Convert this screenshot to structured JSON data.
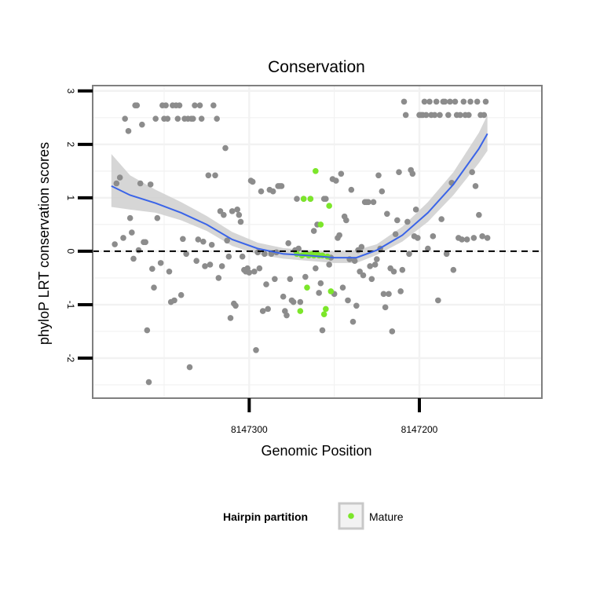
{
  "chart_data": {
    "type": "scatter",
    "title": "Conservation",
    "xlabel": "Genomic Position",
    "ylabel": "phyloP LRT conservation scores",
    "x_reversed": true,
    "xlim": [
      8147392,
      8147128
    ],
    "ylim": [
      -2.75,
      3.1
    ],
    "x_ticks": [
      8147300,
      8147200
    ],
    "y_ticks": [
      -2,
      -1,
      0,
      1,
      2,
      3
    ],
    "grid": true,
    "reference_line": {
      "y": 0,
      "style": "dashed",
      "color": "#000000"
    },
    "legend": {
      "title": "Hairpin partition",
      "placement": "bottom",
      "entries": [
        "Mature"
      ]
    },
    "colors": {
      "other": "#8c8c8c",
      "mature": "#7ce62a",
      "smooth": "#3a64e8",
      "band": "#cfcfcf",
      "panel_border": "#7f7f7f",
      "grid": "#f2f2f2"
    },
    "series": [
      {
        "name": "",
        "color": "#8c8c8c",
        "points": [
          [
            8147379,
            0.13
          ],
          [
            8147378,
            1.27
          ],
          [
            8147376,
            1.38
          ],
          [
            8147374,
            0.25
          ],
          [
            8147373,
            2.48
          ],
          [
            8147371,
            2.25
          ],
          [
            8147370,
            0.62
          ],
          [
            8147369,
            0.35
          ],
          [
            8147368,
            -0.14
          ],
          [
            8147367,
            2.73
          ],
          [
            8147366,
            2.73
          ],
          [
            8147365,
            0.02
          ],
          [
            8147364,
            1.27
          ],
          [
            8147363,
            2.37
          ],
          [
            8147362,
            0.17
          ],
          [
            8147361,
            0.17
          ],
          [
            8147360,
            -1.48
          ],
          [
            8147359,
            -2.45
          ],
          [
            8147358,
            1.25
          ],
          [
            8147357,
            -0.33
          ],
          [
            8147356,
            -0.68
          ],
          [
            8147355,
            2.48
          ],
          [
            8147354,
            0.62
          ],
          [
            8147352,
            -0.22
          ],
          [
            8147351,
            2.73
          ],
          [
            8147350,
            2.48
          ],
          [
            8147349,
            2.73
          ],
          [
            8147348,
            2.48
          ],
          [
            8147347,
            -0.38
          ],
          [
            8147346,
            -0.95
          ],
          [
            8147345,
            2.73
          ],
          [
            8147344,
            -0.92
          ],
          [
            8147343,
            2.73
          ],
          [
            8147342,
            2.48
          ],
          [
            8147341,
            2.73
          ],
          [
            8147340,
            -0.82
          ],
          [
            8147339,
            0.23
          ],
          [
            8147338,
            2.48
          ],
          [
            8147337,
            -0.05
          ],
          [
            8147336,
            2.48
          ],
          [
            8147335,
            -2.17
          ],
          [
            8147334,
            2.48
          ],
          [
            8147333,
            2.48
          ],
          [
            8147332,
            2.73
          ],
          [
            8147331,
            -0.18
          ],
          [
            8147330,
            0.22
          ],
          [
            8147329,
            2.73
          ],
          [
            8147328,
            2.48
          ],
          [
            8147327,
            0.18
          ],
          [
            8147326,
            -0.28
          ],
          [
            8147324,
            1.42
          ],
          [
            8147323,
            -0.25
          ],
          [
            8147322,
            0.12
          ],
          [
            8147321,
            2.73
          ],
          [
            8147320,
            1.42
          ],
          [
            8147319,
            2.48
          ],
          [
            8147318,
            -0.5
          ],
          [
            8147317,
            0.75
          ],
          [
            8147316,
            -0.28
          ],
          [
            8147315,
            0.68
          ],
          [
            8147314,
            1.93
          ],
          [
            8147313,
            0.2
          ],
          [
            8147312,
            -0.1
          ],
          [
            8147311,
            -1.25
          ],
          [
            8147310,
            0.75
          ],
          [
            8147309,
            -0.98
          ],
          [
            8147308,
            -1.02
          ],
          [
            8147307,
            0.78
          ],
          [
            8147306,
            0.68
          ],
          [
            8147305,
            0.55
          ],
          [
            8147304,
            -0.1
          ],
          [
            8147303,
            -0.35
          ],
          [
            8147302,
            -0.38
          ],
          [
            8147301,
            -0.32
          ],
          [
            8147300,
            -0.4
          ],
          [
            8147299,
            1.32
          ],
          [
            8147298,
            1.3
          ],
          [
            8147297,
            -0.38
          ],
          [
            8147296,
            -1.85
          ],
          [
            8147295,
            -0.02
          ],
          [
            8147294,
            -0.32
          ],
          [
            8147293,
            1.12
          ],
          [
            8147292,
            -1.12
          ],
          [
            8147291,
            -0.05
          ],
          [
            8147290,
            -0.62
          ],
          [
            8147289,
            -1.08
          ],
          [
            8147288,
            1.15
          ],
          [
            8147287,
            -0.05
          ],
          [
            8147286,
            1.12
          ],
          [
            8147285,
            -0.52
          ],
          [
            8147284,
            -0.02
          ],
          [
            8147283,
            1.22
          ],
          [
            8147282,
            1.22
          ],
          [
            8147281,
            1.22
          ],
          [
            8147280,
            -0.85
          ],
          [
            8147279,
            -1.12
          ],
          [
            8147278,
            -1.2
          ],
          [
            8147277,
            0.15
          ],
          [
            8147276,
            -0.52
          ],
          [
            8147275,
            -0.92
          ],
          [
            8147274,
            -0.95
          ],
          [
            8147273,
            0.02
          ],
          [
            8147272,
            0.98
          ],
          [
            8147271,
            0.05
          ],
          [
            8147270,
            -0.95
          ],
          [
            8147268,
            0.98
          ],
          [
            8147267,
            -0.48
          ],
          [
            8147266,
            -0.05
          ],
          [
            8147264,
            0.98
          ],
          [
            8147262,
            0.38
          ],
          [
            8147261,
            -0.32
          ],
          [
            8147260,
            0.5
          ],
          [
            8147259,
            -0.78
          ],
          [
            8147258,
            -0.6
          ],
          [
            8147257,
            -1.48
          ],
          [
            8147256,
            0.98
          ],
          [
            8147255,
            0.98
          ],
          [
            8147253,
            -0.25
          ],
          [
            8147252,
            -0.12
          ],
          [
            8147251,
            1.35
          ],
          [
            8147250,
            -0.8
          ],
          [
            8147249,
            1.32
          ],
          [
            8147248,
            0.25
          ],
          [
            8147247,
            0.3
          ],
          [
            8147246,
            1.45
          ],
          [
            8147245,
            -0.68
          ],
          [
            8147244,
            0.65
          ],
          [
            8147243,
            0.58
          ],
          [
            8147242,
            -0.92
          ],
          [
            8147241,
            -0.15
          ],
          [
            8147240,
            1.15
          ],
          [
            8147239,
            -1.32
          ],
          [
            8147238,
            -0.18
          ],
          [
            8147237,
            -1.02
          ],
          [
            8147236,
            0.02
          ],
          [
            8147235,
            -0.38
          ],
          [
            8147234,
            0.08
          ],
          [
            8147233,
            -0.45
          ],
          [
            8147232,
            0.92
          ],
          [
            8147231,
            0.92
          ],
          [
            8147230,
            0.92
          ],
          [
            8147229,
            -0.28
          ],
          [
            8147228,
            -0.52
          ],
          [
            8147227,
            0.92
          ],
          [
            8147226,
            -0.25
          ],
          [
            8147225,
            -0.15
          ],
          [
            8147224,
            1.42
          ],
          [
            8147223,
            0.05
          ],
          [
            8147222,
            1.12
          ],
          [
            8147221,
            -0.8
          ],
          [
            8147220,
            -1.05
          ],
          [
            8147219,
            0.7
          ],
          [
            8147218,
            -0.8
          ],
          [
            8147217,
            -0.32
          ],
          [
            8147216,
            -1.5
          ],
          [
            8147215,
            -0.38
          ],
          [
            8147214,
            0.32
          ],
          [
            8147213,
            0.58
          ],
          [
            8147212,
            1.48
          ],
          [
            8147211,
            -0.75
          ],
          [
            8147210,
            -0.35
          ],
          [
            8147209,
            2.8
          ],
          [
            8147208,
            2.55
          ],
          [
            8147207,
            0.55
          ],
          [
            8147206,
            -0.05
          ],
          [
            8147205,
            1.52
          ],
          [
            8147204,
            1.45
          ],
          [
            8147203,
            0.28
          ],
          [
            8147202,
            0.78
          ],
          [
            8147201,
            0.25
          ],
          [
            8147200,
            2.55
          ],
          [
            8147199,
            2.55
          ],
          [
            8147198,
            2.55
          ],
          [
            8147197,
            2.8
          ],
          [
            8147196,
            2.55
          ],
          [
            8147195,
            0.05
          ],
          [
            8147194,
            2.8
          ],
          [
            8147193,
            2.55
          ],
          [
            8147192,
            0.28
          ],
          [
            8147191,
            2.55
          ],
          [
            8147190,
            2.8
          ],
          [
            8147189,
            -0.92
          ],
          [
            8147188,
            2.55
          ],
          [
            8147187,
            0.6
          ],
          [
            8147186,
            2.8
          ],
          [
            8147185,
            2.8
          ],
          [
            8147184,
            -0.05
          ],
          [
            8147183,
            2.55
          ],
          [
            8147182,
            2.8
          ],
          [
            8147181,
            1.28
          ],
          [
            8147180,
            -0.35
          ],
          [
            8147179,
            2.8
          ],
          [
            8147178,
            2.55
          ],
          [
            8147177,
            0.25
          ],
          [
            8147176,
            2.55
          ],
          [
            8147175,
            0.22
          ],
          [
            8147174,
            2.8
          ],
          [
            8147173,
            2.55
          ],
          [
            8147172,
            0.22
          ],
          [
            8147171,
            2.55
          ],
          [
            8147170,
            2.8
          ],
          [
            8147169,
            1.48
          ],
          [
            8147168,
            0.25
          ],
          [
            8147167,
            1.22
          ],
          [
            8147166,
            2.8
          ],
          [
            8147165,
            0.68
          ],
          [
            8147164,
            2.55
          ],
          [
            8147163,
            0.28
          ],
          [
            8147162,
            2.55
          ],
          [
            8147161,
            2.8
          ],
          [
            8147160,
            0.25
          ]
        ]
      },
      {
        "name": "Mature",
        "color": "#7ce62a",
        "points": [
          [
            8147272,
            -0.05
          ],
          [
            8147270,
            -1.12
          ],
          [
            8147269,
            -0.08
          ],
          [
            8147268,
            0.98
          ],
          [
            8147267,
            -0.05
          ],
          [
            8147266,
            -0.68
          ],
          [
            8147265,
            -0.08
          ],
          [
            8147264,
            0.98
          ],
          [
            8147263,
            -0.05
          ],
          [
            8147262,
            -0.08
          ],
          [
            8147261,
            1.5
          ],
          [
            8147260,
            -0.05
          ],
          [
            8147259,
            -0.08
          ],
          [
            8147258,
            0.5
          ],
          [
            8147257,
            -0.08
          ],
          [
            8147256,
            -1.18
          ],
          [
            8147255,
            -1.08
          ],
          [
            8147254,
            -0.1
          ],
          [
            8147253,
            0.85
          ],
          [
            8147252,
            -0.75
          ]
        ]
      }
    ],
    "smooth": {
      "x": [
        8147381,
        8147370,
        8147355,
        8147340,
        8147325,
        8147310,
        8147295,
        8147280,
        8147265,
        8147250,
        8147237,
        8147225,
        8147210,
        8147195,
        8147180,
        8147165,
        8147160
      ],
      "y": [
        1.22,
        1.05,
        0.9,
        0.72,
        0.5,
        0.22,
        0.05,
        -0.05,
        -0.08,
        -0.12,
        -0.12,
        0.02,
        0.3,
        0.72,
        1.25,
        1.92,
        2.2
      ],
      "lo": [
        0.83,
        0.78,
        0.72,
        0.58,
        0.38,
        0.1,
        -0.06,
        -0.14,
        -0.18,
        -0.22,
        -0.22,
        -0.07,
        0.18,
        0.55,
        1.05,
        1.65,
        1.88
      ],
      "hi": [
        1.82,
        1.42,
        1.15,
        0.92,
        0.66,
        0.36,
        0.16,
        0.06,
        0.02,
        0,
        0.02,
        0.13,
        0.46,
        0.92,
        1.48,
        2.22,
        2.55
      ]
    }
  }
}
